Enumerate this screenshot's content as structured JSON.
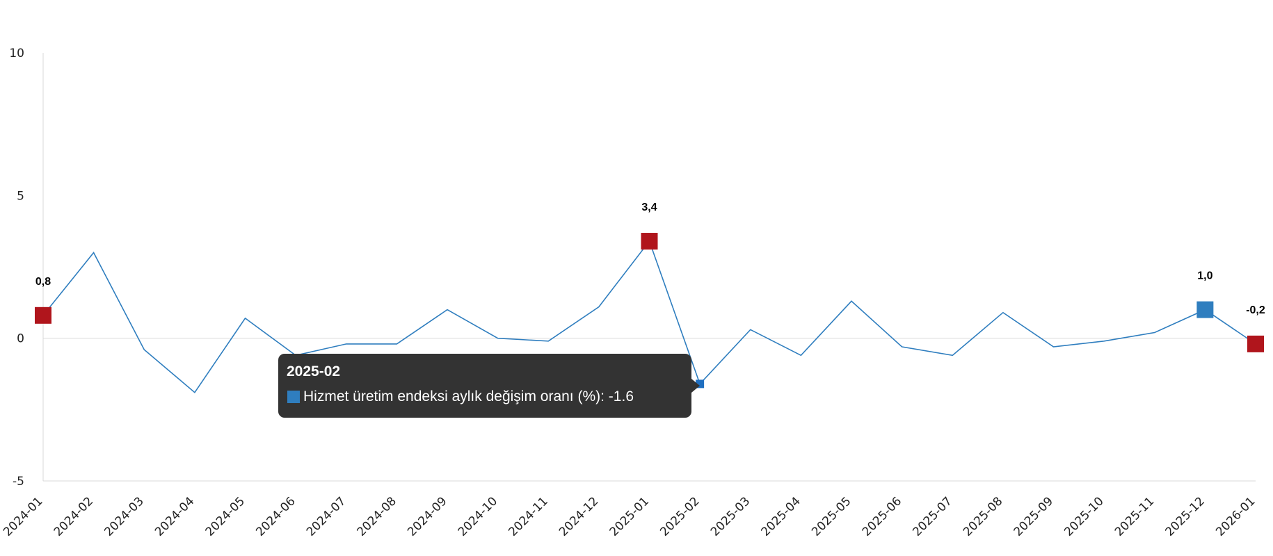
{
  "chart_data": {
    "type": "line",
    "title": "",
    "xlabel": "",
    "ylabel": "",
    "ylim": [
      -5,
      10
    ],
    "y_ticks": [
      -5,
      0,
      5,
      10
    ],
    "y_tick_labels": [
      "-5",
      "0",
      "5",
      "10"
    ],
    "grid": false,
    "zero_line": true,
    "categories": [
      "2024-01",
      "2024-02",
      "2024-03",
      "2024-04",
      "2024-05",
      "2024-06",
      "2024-07",
      "2024-08",
      "2024-09",
      "2024-10",
      "2024-11",
      "2024-12",
      "2025-01",
      "2025-02",
      "2025-03",
      "2025-04",
      "2025-05",
      "2025-06",
      "2025-07",
      "2025-08",
      "2025-09",
      "2025-10",
      "2025-11",
      "2025-12",
      "2026-01"
    ],
    "series": [
      {
        "name": "Hizmet üretim endeksi aylık değişim oranı (%)",
        "color": "#2f7ebf",
        "values": [
          0.8,
          3.0,
          -0.4,
          -1.9,
          0.7,
          -0.6,
          -0.2,
          -0.2,
          1.0,
          0.0,
          -0.1,
          1.1,
          3.4,
          -1.6,
          0.3,
          -0.6,
          1.3,
          -0.3,
          -0.6,
          0.9,
          -0.3,
          -0.1,
          0.2,
          1.0,
          -0.2
        ]
      }
    ],
    "highlighted_points": [
      {
        "category": "2024-01",
        "value": 0.8,
        "label": "0,8",
        "color": "#b0151c"
      },
      {
        "category": "2025-01",
        "value": 3.4,
        "label": "3,4",
        "color": "#b0151c"
      },
      {
        "category": "2025-12",
        "value": 1.0,
        "label": "1,0",
        "color": "#2f7ebf"
      },
      {
        "category": "2026-01",
        "value": -0.2,
        "label": "-0,2",
        "color": "#b0151c"
      }
    ],
    "hover_point": {
      "category": "2025-02",
      "value": -1.6
    }
  },
  "tooltip": {
    "title": "2025-02",
    "series_label": "Hizmet üretim endeksi aylık değişim oranı (%): -1.6"
  }
}
